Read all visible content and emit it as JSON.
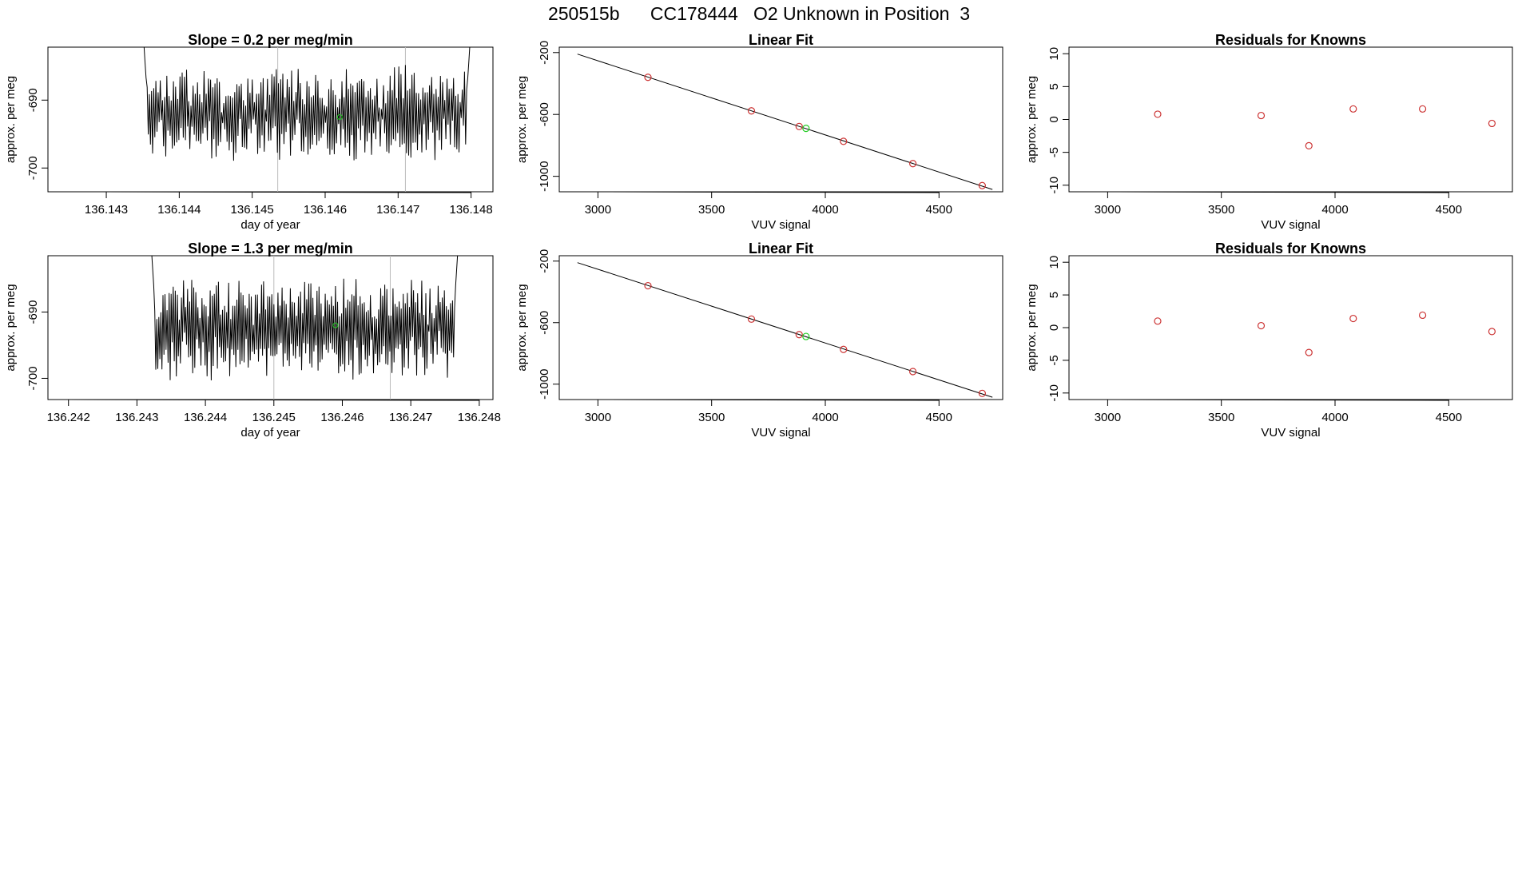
{
  "title": "250515b      CC178444   O2 Unknown in Position  3",
  "colors": {
    "unknown": "#22cc22",
    "known": "#cc3333",
    "line": "#000000",
    "vline": "#bbbbbb",
    "axis": "#000000"
  },
  "chart_data": [
    {
      "type": "line",
      "title": "Slope =  0.2  per meg/min",
      "xlabel": "day of year",
      "ylabel": "approx. per meg",
      "xlim": [
        136.1422,
        136.1483
      ],
      "ylim": [
        -703.5,
        -682.2
      ],
      "xticks": [
        136.143,
        136.144,
        136.145,
        136.146,
        136.147,
        136.148
      ],
      "xticklabels": [
        "136.143",
        "136.144",
        "136.145",
        "136.146",
        "136.147",
        "136.148"
      ],
      "yticks": [
        -690,
        -700
      ],
      "yticklabels": [
        "-690",
        "-700"
      ],
      "vlines": [
        136.14535,
        136.1471
      ],
      "series_start": 136.1435,
      "series_end": 136.148,
      "series_base": -692.0,
      "series_amp": 4.5,
      "series_seed": 7,
      "series_n": 300,
      "unknown_points": [
        {
          "x": 136.1462,
          "y": -692.5
        }
      ]
    },
    {
      "type": "scatter",
      "title": "Linear Fit",
      "xlabel": "VUV signal",
      "ylabel": "approx. per meg",
      "xlim": [
        2830,
        4780
      ],
      "ylim": [
        -1100,
        -165
      ],
      "xticks": [
        3000,
        3500,
        4000,
        4500
      ],
      "xticklabels": [
        "3000",
        "3500",
        "4000",
        "4500"
      ],
      "yticks": [
        -200,
        -600,
        -1000
      ],
      "yticklabels": [
        "-200",
        "-600",
        "-1000"
      ],
      "fit_line": [
        [
          2910,
          -210
        ],
        [
          4735,
          -1085
        ]
      ],
      "known_points": [
        [
          3220,
          -360
        ],
        [
          3675,
          -577
        ],
        [
          3885,
          -678
        ],
        [
          4080,
          -774
        ],
        [
          4385,
          -918
        ],
        [
          4690,
          -1060
        ]
      ],
      "unknown_points": [
        [
          3915,
          -690
        ]
      ]
    },
    {
      "type": "scatter",
      "title": "Residuals for Knowns",
      "xlabel": "VUV signal",
      "ylabel": "approx. per meg",
      "xlim": [
        2830,
        4780
      ],
      "ylim": [
        -11,
        11
      ],
      "xticks": [
        3000,
        3500,
        4000,
        4500
      ],
      "xticklabels": [
        "3000",
        "3500",
        "4000",
        "4500"
      ],
      "yticks": [
        10,
        5,
        0,
        -5,
        -10
      ],
      "yticklabels": [
        "10",
        "5",
        "0",
        "-5",
        "-10"
      ],
      "known_points": [
        [
          3220,
          0.8
        ],
        [
          3675,
          0.6
        ],
        [
          3885,
          -4.0
        ],
        [
          4080,
          1.6
        ],
        [
          4385,
          1.6
        ],
        [
          4690,
          -0.6
        ]
      ]
    },
    {
      "type": "line",
      "title": "Slope =  1.3  per meg/min",
      "xlabel": "day of year",
      "ylabel": "approx. per meg",
      "xlim": [
        136.2417,
        136.2482
      ],
      "ylim": [
        -703.2,
        -681.5
      ],
      "xticks": [
        136.242,
        136.243,
        136.244,
        136.245,
        136.246,
        136.247,
        136.248
      ],
      "xticklabels": [
        "136.242",
        "136.243",
        "136.244",
        "136.245",
        "136.246",
        "136.247",
        "136.248"
      ],
      "yticks": [
        -690,
        -700
      ],
      "yticklabels": [
        "-690",
        "-700"
      ],
      "vlines": [
        136.245,
        136.2467
      ],
      "series_start": 136.2432,
      "series_end": 136.2477,
      "series_base": -692.5,
      "series_amp": 4.8,
      "series_seed": 13,
      "series_n": 300,
      "unknown_points": [
        {
          "x": 136.2459,
          "y": -692.0
        }
      ]
    },
    {
      "type": "scatter",
      "title": "Linear Fit",
      "xlabel": "VUV signal",
      "ylabel": "approx. per meg",
      "xlim": [
        2830,
        4780
      ],
      "ylim": [
        -1100,
        -165
      ],
      "xticks": [
        3000,
        3500,
        4000,
        4500
      ],
      "xticklabels": [
        "3000",
        "3500",
        "4000",
        "4500"
      ],
      "yticks": [
        -200,
        -600,
        -1000
      ],
      "yticklabels": [
        "-200",
        "-600",
        "-1000"
      ],
      "fit_line": [
        [
          2910,
          -210
        ],
        [
          4735,
          -1085
        ]
      ],
      "known_points": [
        [
          3220,
          -360
        ],
        [
          3675,
          -577
        ],
        [
          3885,
          -678
        ],
        [
          4080,
          -774
        ],
        [
          4385,
          -918
        ],
        [
          4690,
          -1060
        ]
      ],
      "unknown_points": [
        [
          3915,
          -690
        ]
      ]
    },
    {
      "type": "scatter",
      "title": "Residuals for Knowns",
      "xlabel": "VUV signal",
      "ylabel": "approx. per meg",
      "xlim": [
        2830,
        4780
      ],
      "ylim": [
        -11,
        11
      ],
      "xticks": [
        3000,
        3500,
        4000,
        4500
      ],
      "xticklabels": [
        "3000",
        "3500",
        "4000",
        "4500"
      ],
      "yticks": [
        10,
        5,
        0,
        -5,
        -10
      ],
      "yticklabels": [
        "10",
        "5",
        "0",
        "-5",
        "-10"
      ],
      "known_points": [
        [
          3220,
          1.0
        ],
        [
          3675,
          0.3
        ],
        [
          3885,
          -3.8
        ],
        [
          4080,
          1.4
        ],
        [
          4385,
          1.9
        ],
        [
          4690,
          -0.6
        ]
      ]
    }
  ]
}
